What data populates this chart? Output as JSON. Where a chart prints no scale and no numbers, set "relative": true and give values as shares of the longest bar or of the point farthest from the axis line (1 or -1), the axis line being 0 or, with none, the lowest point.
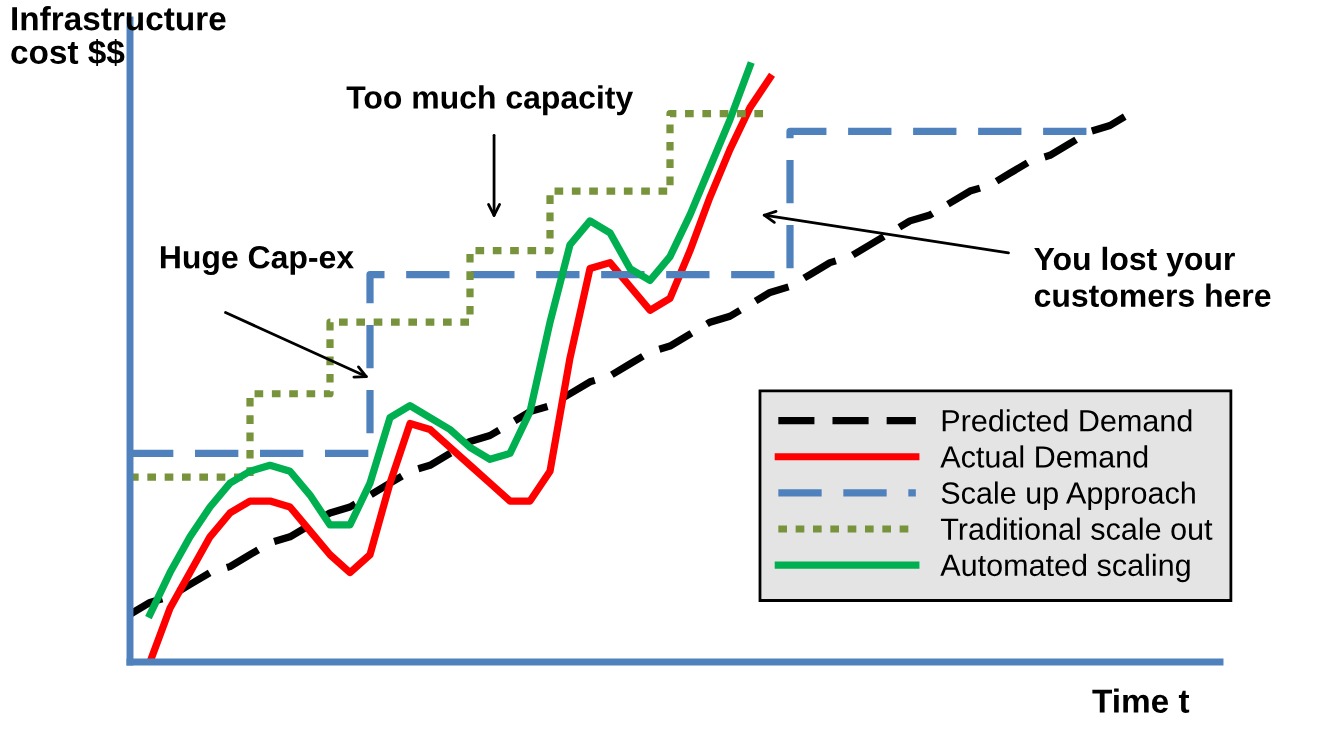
{
  "chart_data": {
    "type": "line",
    "relative": true,
    "xlabel": "Time t",
    "ylabel": "Infrastructure\ncost $$",
    "legend": "bottom right",
    "categories": [
      null,
      null,
      null,
      null,
      null,
      null,
      null,
      null,
      null,
      null,
      null,
      null,
      null,
      null,
      null,
      null,
      null,
      null,
      null,
      null,
      null,
      null,
      null,
      null,
      null,
      null,
      null,
      null,
      null,
      null,
      null,
      null,
      null,
      null,
      null,
      null,
      null,
      null,
      null,
      null,
      null,
      null,
      null,
      null,
      null,
      null,
      null,
      null,
      null,
      null,
      null
    ],
    "annotations": [
      "Huge Cap-ex",
      "Too much capacity",
      "You lost your\ncustomers here"
    ],
    "series": [
      {
        "name": "Predicted Demand",
        "color": "#000000",
        "line_style": "dashed",
        "values": [
          0.08,
          0.1,
          0.11,
          0.13,
          0.15,
          0.16,
          0.18,
          0.2,
          0.21,
          0.23,
          0.25,
          0.26,
          0.28,
          0.3,
          0.32,
          0.33,
          0.35,
          0.37,
          0.38,
          0.4,
          0.42,
          0.43,
          0.45,
          0.47,
          0.48,
          0.5,
          0.52,
          0.53,
          0.55,
          0.57,
          0.58,
          0.6,
          0.62,
          0.63,
          0.65,
          0.67,
          0.68,
          0.7,
          0.72,
          0.74,
          0.75,
          0.77,
          0.79,
          0.8,
          0.82,
          0.84,
          0.85,
          0.87,
          0.89,
          0.9,
          0.92
        ]
      },
      {
        "name": "Actual Demand",
        "color": "#ff0000",
        "line_style": "solid",
        "values": [
          null,
          0.0,
          0.09,
          0.15,
          0.21,
          0.25,
          0.27,
          0.27,
          0.26,
          0.22,
          0.18,
          0.15,
          0.18,
          0.3,
          0.4,
          0.39,
          0.36,
          0.33,
          0.3,
          0.27,
          0.27,
          0.32,
          0.51,
          0.66,
          0.67,
          0.63,
          0.59,
          0.61,
          0.69,
          0.78,
          0.86,
          0.93,
          0.98,
          null,
          null,
          null,
          null,
          null,
          null,
          null,
          null,
          null,
          null,
          null,
          null,
          null,
          null,
          null,
          null,
          null,
          null
        ]
      },
      {
        "name": "Scale up Approach",
        "color": "#4f81bd",
        "line_style": "dashed",
        "type": "step",
        "values": [
          0.35,
          0.35,
          0.35,
          0.35,
          0.35,
          0.35,
          0.35,
          0.35,
          0.35,
          0.35,
          0.35,
          0.35,
          0.65,
          0.65,
          0.65,
          0.65,
          0.65,
          0.65,
          0.65,
          0.65,
          0.65,
          0.65,
          0.65,
          0.65,
          0.65,
          0.65,
          0.65,
          0.65,
          0.65,
          0.65,
          0.65,
          0.65,
          0.65,
          0.89,
          0.89,
          0.89,
          0.89,
          0.89,
          0.89,
          0.89,
          0.89,
          0.89,
          0.89,
          0.89,
          0.89,
          0.89,
          0.89,
          0.89,
          0.89,
          null,
          null
        ]
      },
      {
        "name": "Traditional scale out",
        "color": "#77933c",
        "line_style": "dotted",
        "type": "step",
        "values": [
          0.31,
          0.31,
          0.31,
          0.31,
          0.31,
          0.31,
          0.45,
          0.45,
          0.45,
          0.45,
          0.57,
          0.57,
          0.57,
          0.57,
          0.57,
          0.57,
          0.57,
          0.69,
          0.69,
          0.69,
          0.69,
          0.79,
          0.79,
          0.79,
          0.79,
          0.79,
          0.79,
          0.92,
          0.92,
          0.92,
          0.92,
          0.92,
          0.92,
          null,
          null,
          null,
          null,
          null,
          null,
          null,
          null,
          null,
          null,
          null,
          null,
          null,
          null,
          null,
          null,
          null,
          null
        ]
      },
      {
        "name": "Automated scaling",
        "color": "#00b050",
        "line_style": "solid",
        "values": [
          null,
          0.08,
          0.15,
          0.21,
          0.26,
          0.3,
          0.32,
          0.33,
          0.32,
          0.28,
          0.23,
          0.23,
          0.3,
          0.41,
          0.43,
          0.41,
          0.39,
          0.36,
          0.34,
          0.35,
          0.42,
          0.57,
          0.7,
          0.74,
          0.72,
          0.66,
          0.64,
          0.68,
          0.75,
          0.83,
          0.91,
          1.0,
          null,
          null,
          null,
          null,
          null,
          null,
          null,
          null,
          null,
          null,
          null,
          null,
          null,
          null,
          null,
          null,
          null,
          null,
          null
        ]
      }
    ]
  }
}
